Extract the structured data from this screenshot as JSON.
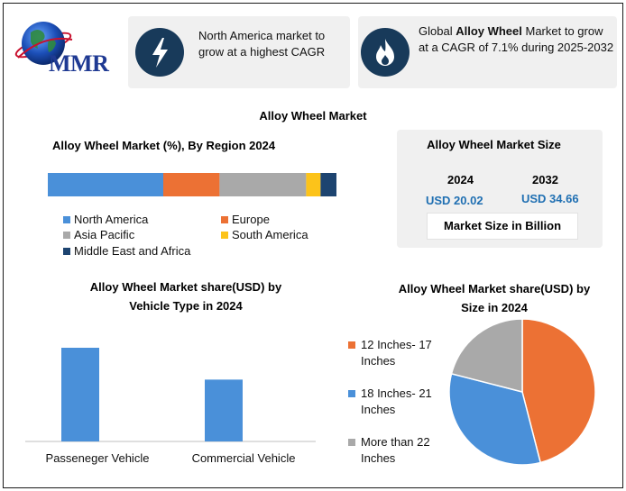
{
  "logo": {
    "text": "MMR"
  },
  "cards": [
    {
      "icon": "lightning-icon",
      "text": "North America market to grow at a highest CAGR"
    },
    {
      "icon": "flame-icon",
      "text_before": "Global ",
      "text_bold": "Alloy Wheel",
      "text_after": " Market to grow at a CAGR of 7.1% during 2025-2032"
    }
  ],
  "title": "Alloy Wheel Market",
  "region_chart": {
    "title": "Alloy Wheel Market (%), By Region 2024"
  },
  "market_size": {
    "title": "Alloy Wheel Market Size",
    "year1": "2024",
    "value1": "USD 20.02",
    "year2": "2032",
    "value2": "USD 34.66",
    "unit_note": "Market Size in Billion"
  },
  "vehicle_chart": {
    "title_line1": "Alloy Wheel Market share(USD)  by",
    "title_line2": "Vehicle Type in 2024"
  },
  "size_chart": {
    "title_line1": "Alloy Wheel Market share(USD)  by",
    "title_line2": "Size in 2024"
  },
  "colors": {
    "blue": "#4a90d9",
    "orange": "#ec7134",
    "gray": "#a9a9a9",
    "yellow": "#fcc31a",
    "navy": "#1d4470"
  },
  "chart_data": [
    {
      "type": "bar",
      "orientation": "horizontal-stacked",
      "title": "Alloy Wheel Market (%), By Region 2024",
      "categories": [
        "2024"
      ],
      "series": [
        {
          "name": "North America",
          "values": [
            40
          ],
          "color": "#4a90d9"
        },
        {
          "name": "Europe",
          "values": [
            19.5
          ],
          "color": "#ec7134"
        },
        {
          "name": "Asia Pacific",
          "values": [
            30
          ],
          "color": "#a9a9a9"
        },
        {
          "name": "South America",
          "values": [
            5
          ],
          "color": "#fcc31a"
        },
        {
          "name": "Middle East and Africa",
          "values": [
            5.5
          ],
          "color": "#1d4470"
        }
      ],
      "xlim": [
        0,
        100
      ],
      "legend": "bottom"
    },
    {
      "type": "bar",
      "title": "Alloy Wheel Market share(USD)  by Vehicle Type in 2024",
      "categories": [
        "Passeneger Vehicle",
        "Commercial Vehicle"
      ],
      "values": [
        100,
        66
      ],
      "color": "#4a90d9",
      "ylim": [
        0,
        100
      ],
      "grid": false
    },
    {
      "type": "pie",
      "title": "Alloy Wheel Market share(USD)  by Size in 2024",
      "labels": [
        "12 Inches- 17 Inches",
        "18 Inches- 21 Inches",
        "More than 22 Inches"
      ],
      "values": [
        46,
        33,
        21
      ],
      "colors": [
        "#ec7134",
        "#4a90d9",
        "#a9a9a9"
      ],
      "legend": "left"
    }
  ]
}
